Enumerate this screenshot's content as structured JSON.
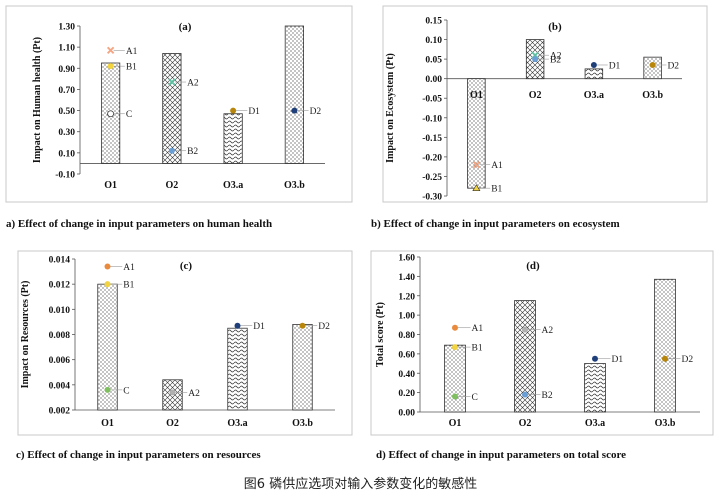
{
  "figure_caption": "图6 磷供应选项对输入参数变化的敏感性",
  "chart_data": [
    {
      "type": "bar",
      "panel_tag": "(a)",
      "title": "a) Effect of change in input parameters on human health",
      "ylabel": "Impact on Human health (Pt)",
      "categories": [
        "O1",
        "O2",
        "O3.a",
        "O3.b"
      ],
      "values": [
        0.95,
        1.04,
        0.47,
        1.3
      ],
      "patterns": [
        "dots",
        "cross",
        "wave",
        "dots"
      ],
      "ylim": [
        -0.1,
        1.3
      ],
      "yticks": [
        -0.1,
        0.1,
        0.3,
        0.5,
        0.7,
        0.9,
        1.1,
        1.3
      ],
      "ytick_labels": [
        "-0.10",
        "0.10",
        "0.30",
        "0.50",
        "0.70",
        "0.90",
        "1.10",
        "1.30"
      ],
      "points": [
        {
          "label": "A1",
          "x": "O1",
          "y": 1.07,
          "color": "#f4a582",
          "marker": "x"
        },
        {
          "label": "B1",
          "x": "O1",
          "y": 0.92,
          "color": "#f2d340",
          "marker": "circle"
        },
        {
          "label": "C",
          "x": "O1",
          "y": 0.47,
          "color": "#ffffff",
          "marker": "circle"
        },
        {
          "label": "A2",
          "x": "O2",
          "y": 0.77,
          "color": "#5fbfa3",
          "marker": "x"
        },
        {
          "label": "B2",
          "x": "O2",
          "y": 0.12,
          "color": "#6a9fd6",
          "marker": "circle"
        },
        {
          "label": "D1",
          "x": "O3.a",
          "y": 0.5,
          "color": "#b8860b",
          "marker": "circle"
        },
        {
          "label": "D2",
          "x": "O3.b",
          "y": 0.5,
          "color": "#1f3f7a",
          "marker": "circle"
        }
      ]
    },
    {
      "type": "bar",
      "panel_tag": "(b)",
      "title": "b) Effect of change in input parameters on ecosystem",
      "ylabel": "Impact on Ecosystem (Pt)",
      "categories": [
        "O1",
        "O2",
        "O3.a",
        "O3.b"
      ],
      "values": [
        -0.28,
        0.1,
        0.025,
        0.055
      ],
      "patterns": [
        "dots",
        "cross",
        "wave",
        "dots"
      ],
      "ylim": [
        -0.3,
        0.15
      ],
      "yticks": [
        -0.3,
        -0.25,
        -0.2,
        -0.15,
        -0.1,
        -0.05,
        0.0,
        0.05,
        0.1,
        0.15
      ],
      "ytick_labels": [
        "-0.30",
        "-0.25",
        "-0.20",
        "-0.15",
        "-0.10",
        "-0.05",
        "0.00",
        "0.05",
        "0.10",
        "0.15"
      ],
      "points": [
        {
          "label": "A1",
          "x": "O1",
          "y": -0.22,
          "color": "#f4a582",
          "marker": "x"
        },
        {
          "label": "B1",
          "x": "O1",
          "y": -0.28,
          "color": "#f2d340",
          "marker": "triangle"
        },
        {
          "label": "A2",
          "x": "O2",
          "y": 0.06,
          "color": "#5fbfa3",
          "marker": "x"
        },
        {
          "label": "B2",
          "x": "O2",
          "y": 0.05,
          "color": "#6a9fd6",
          "marker": "circle"
        },
        {
          "label": "D1",
          "x": "O3.a",
          "y": 0.035,
          "color": "#1f3f7a",
          "marker": "circle"
        },
        {
          "label": "D2",
          "x": "O3.b",
          "y": 0.035,
          "color": "#b8860b",
          "marker": "circle"
        }
      ]
    },
    {
      "type": "bar",
      "panel_tag": "(c)",
      "title": "c) Effect of change in input parameters on resources",
      "ylabel": "Impact on Resources (Pt)",
      "categories": [
        "O1",
        "O2",
        "O3.a",
        "O3.b"
      ],
      "values": [
        0.012,
        0.0044,
        0.0085,
        0.0088
      ],
      "patterns": [
        "dots",
        "cross",
        "wave",
        "dots"
      ],
      "ylim": [
        0.002,
        0.014
      ],
      "yticks": [
        0.002,
        0.004,
        0.006,
        0.008,
        0.01,
        0.012,
        0.014
      ],
      "ytick_labels": [
        "0.002",
        "0.004",
        "0.006",
        "0.008",
        "0.010",
        "0.012",
        "0.014"
      ],
      "points": [
        {
          "label": "A1",
          "x": "O1",
          "y": 0.0134,
          "color": "#e98a3c",
          "marker": "circle"
        },
        {
          "label": "B1",
          "x": "O1",
          "y": 0.012,
          "color": "#f2d340",
          "marker": "circle"
        },
        {
          "label": "C",
          "x": "O1",
          "y": 0.0036,
          "color": "#7fbf5f",
          "marker": "circle"
        },
        {
          "label": "A2",
          "x": "O2",
          "y": 0.0034,
          "color": "#b0b0b0",
          "marker": "circle"
        },
        {
          "label": "D1",
          "x": "O3.a",
          "y": 0.0087,
          "color": "#1f3f7a",
          "marker": "circle"
        },
        {
          "label": "D2",
          "x": "O3.b",
          "y": 0.0087,
          "color": "#b8860b",
          "marker": "circle"
        }
      ]
    },
    {
      "type": "bar",
      "panel_tag": "(d)",
      "title": "d) Effect of change in input parameters on total score",
      "ylabel": "Total score (Pt)",
      "categories": [
        "O1",
        "O2",
        "O3.a",
        "O3.b"
      ],
      "values": [
        0.69,
        1.15,
        0.5,
        1.37
      ],
      "patterns": [
        "dots",
        "cross",
        "wave",
        "dots"
      ],
      "ylim": [
        0.0,
        1.6
      ],
      "yticks": [
        0.0,
        0.2,
        0.4,
        0.6,
        0.8,
        1.0,
        1.2,
        1.4,
        1.6
      ],
      "ytick_labels": [
        "0.00",
        "0.20",
        "0.40",
        "0.60",
        "0.80",
        "1.00",
        "1.20",
        "1.40",
        "1.60"
      ],
      "points": [
        {
          "label": "A1",
          "x": "O1",
          "y": 0.87,
          "color": "#e98a3c",
          "marker": "circle"
        },
        {
          "label": "B1",
          "x": "O1",
          "y": 0.67,
          "color": "#f2d340",
          "marker": "circle"
        },
        {
          "label": "C",
          "x": "O1",
          "y": 0.16,
          "color": "#7fbf5f",
          "marker": "circle"
        },
        {
          "label": "A2",
          "x": "O2",
          "y": 0.85,
          "color": "#b0b0b0",
          "marker": "circle"
        },
        {
          "label": "B2",
          "x": "O2",
          "y": 0.18,
          "color": "#6a9fd6",
          "marker": "circle"
        },
        {
          "label": "D1",
          "x": "O3.a",
          "y": 0.55,
          "color": "#1f3f7a",
          "marker": "circle"
        },
        {
          "label": "D2",
          "x": "O3.b",
          "y": 0.55,
          "color": "#b8860b",
          "marker": "circle"
        }
      ]
    }
  ]
}
